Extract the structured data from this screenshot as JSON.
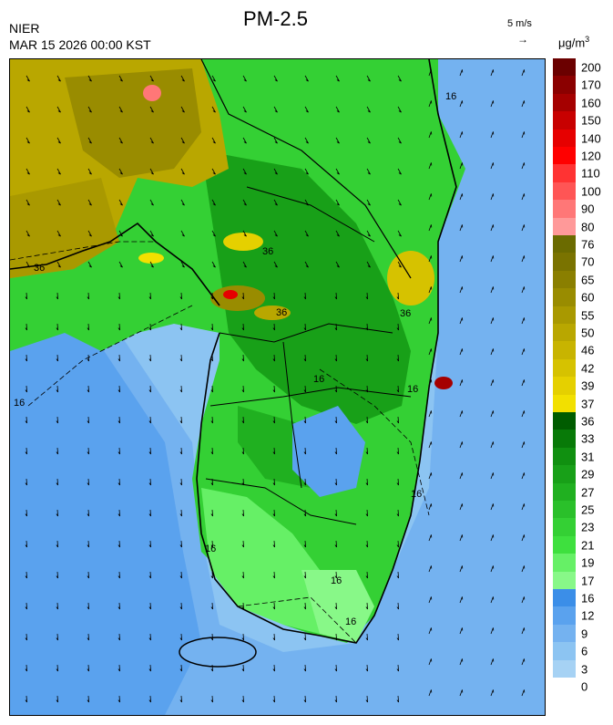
{
  "header": {
    "agency": "NIER",
    "timestamp": "MAR 15 2026 00:00 KST",
    "title": "PM-2.5",
    "wind_reference": "5 m/s",
    "wind_arrow": "→",
    "unit_base": "μg/m",
    "unit_exp": "3"
  },
  "legend": {
    "labels": [
      "200",
      "170",
      "160",
      "150",
      "140",
      "120",
      "110",
      "100",
      "90",
      "80",
      "76",
      "70",
      "65",
      "60",
      "55",
      "50",
      "46",
      "42",
      "39",
      "37",
      "36",
      "33",
      "31",
      "29",
      "27",
      "25",
      "23",
      "21",
      "19",
      "17",
      "16",
      "12",
      "9",
      "6",
      "3",
      "0"
    ],
    "colors": [
      "#6b0000",
      "#8b0000",
      "#a50000",
      "#c80000",
      "#e60000",
      "#ff0000",
      "#ff3333",
      "#ff5555",
      "#ff7777",
      "#ff9999",
      "#6b6b00",
      "#7a7300",
      "#8a7f00",
      "#998c00",
      "#a99900",
      "#b9a700",
      "#c8b400",
      "#d6c200",
      "#e5d000",
      "#f2e000",
      "#005c00",
      "#087a08",
      "#109010",
      "#18a018",
      "#20b020",
      "#2ac02a",
      "#34d034",
      "#3ee03e",
      "#66f066",
      "#88f888",
      "#3b8ee8",
      "#5aa2ee",
      "#74b2f0",
      "#8cc4f2",
      "#a6d2f4"
    ]
  },
  "map": {
    "contour_labels": [
      "16",
      "36",
      "36",
      "36",
      "16",
      "16",
      "16",
      "16",
      "16",
      "16",
      "16",
      "36"
    ]
  }
}
